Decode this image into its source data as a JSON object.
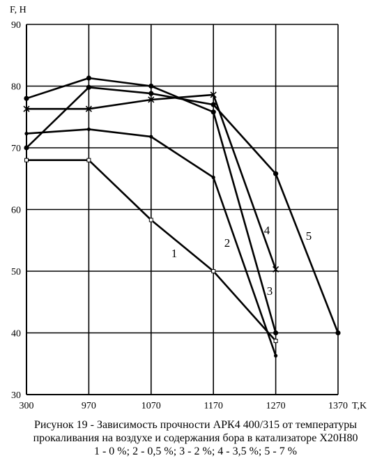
{
  "chart_data": {
    "type": "line",
    "ylabel": "F, H",
    "xlabel": "T,K",
    "categories": [
      "300",
      "970",
      "1070",
      "1170",
      "1270",
      "1370"
    ],
    "ylim": [
      30,
      90
    ],
    "yticks": [
      "30",
      "40",
      "50",
      "60",
      "70",
      "80",
      "90"
    ],
    "grid": true,
    "series": [
      {
        "name": "1",
        "marker": "open-square",
        "values": [
          68,
          68,
          58.3,
          50,
          38.7,
          null
        ]
      },
      {
        "name": "2",
        "marker": "dot",
        "values": [
          72.3,
          73,
          71.8,
          65.2,
          36.3,
          null
        ]
      },
      {
        "name": "3",
        "marker": "filled-diamond",
        "values": [
          78,
          81.3,
          80,
          75.8,
          40,
          null
        ]
      },
      {
        "name": "4",
        "marker": "cross",
        "values": [
          76.3,
          76.3,
          77.8,
          78.6,
          50.3,
          null
        ]
      },
      {
        "name": "5",
        "marker": "filled-diamond",
        "values": [
          70,
          79.8,
          78.8,
          77,
          65.8,
          40
        ]
      }
    ],
    "series_labels": [
      "1",
      "2",
      "3",
      "4",
      "5"
    ]
  },
  "caption": {
    "line1": "Рисунок 19 -  Зависимость прочности АРК4 400/315 от температуры",
    "line2": "прокаливания на воздухе и содержания бора в катализаторе Х20Н80",
    "line3": "1 - 0 %; 2 - 0,5 %; 3 - 2 %; 4 - 3,5 %; 5 - 7 %"
  }
}
